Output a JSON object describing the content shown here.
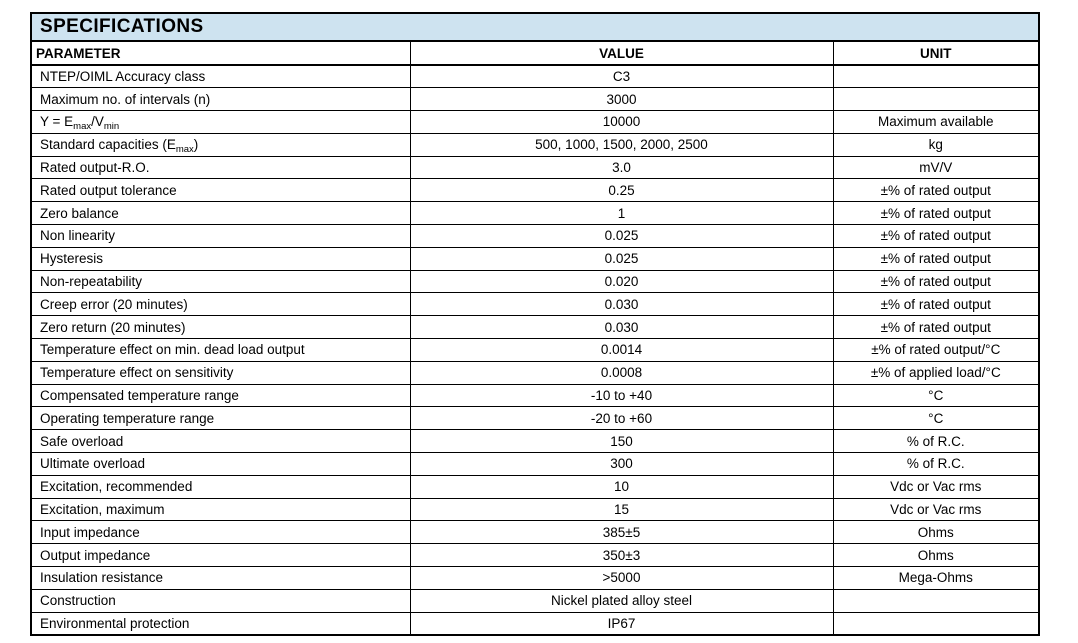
{
  "title": "SPECIFICATIONS",
  "colors": {
    "title_background": "#cee3f0",
    "border": "#000000",
    "text": "#000000",
    "page_background": "#ffffff"
  },
  "table": {
    "headers": {
      "parameter": "PARAMETER",
      "value": "VALUE",
      "unit": "UNIT"
    },
    "rows": [
      {
        "parameter": "NTEP/OIML Accuracy class",
        "value": "C3",
        "unit": ""
      },
      {
        "parameter": "Maximum no. of intervals (n)",
        "value": "3000",
        "unit": ""
      },
      {
        "parameter": "Y = E_{max}/V_{min}",
        "value": "10000",
        "unit": "Maximum available"
      },
      {
        "parameter": "Standard capacities (E_{max})",
        "value": "500, 1000, 1500, 2000, 2500",
        "unit": "kg"
      },
      {
        "parameter": "Rated output-R.O.",
        "value": "3.0",
        "unit": "mV/V"
      },
      {
        "parameter": "Rated output tolerance",
        "value": "0.25",
        "unit": "±% of rated output"
      },
      {
        "parameter": "Zero balance",
        "value": "1",
        "unit": "±% of rated output"
      },
      {
        "parameter": "Non linearity",
        "value": "0.025",
        "unit": "±% of rated output"
      },
      {
        "parameter": "Hysteresis",
        "value": "0.025",
        "unit": "±% of rated output"
      },
      {
        "parameter": "Non-repeatability",
        "value": "0.020",
        "unit": "±% of rated output"
      },
      {
        "parameter": "Creep error (20 minutes)",
        "value": "0.030",
        "unit": "±% of rated output"
      },
      {
        "parameter": "Zero return (20 minutes)",
        "value": "0.030",
        "unit": "±% of rated output"
      },
      {
        "parameter": "Temperature effect on min. dead load output",
        "value": "0.0014",
        "unit": "±% of rated output/°C"
      },
      {
        "parameter": "Temperature effect on sensitivity",
        "value": "0.0008",
        "unit": "±% of applied load/°C"
      },
      {
        "parameter": "Compensated temperature range",
        "value": "-10 to +40",
        "unit": "°C"
      },
      {
        "parameter": "Operating temperature range",
        "value": "-20 to +60",
        "unit": "°C"
      },
      {
        "parameter": "Safe overload",
        "value": "150",
        "unit": "% of R.C."
      },
      {
        "parameter": "Ultimate overload",
        "value": "300",
        "unit": "% of R.C."
      },
      {
        "parameter": "Excitation, recommended",
        "value": "10",
        "unit": "Vdc or Vac rms"
      },
      {
        "parameter": "Excitation, maximum",
        "value": "15",
        "unit": "Vdc or Vac rms"
      },
      {
        "parameter": "Input impedance",
        "value": "385±5",
        "unit": "Ohms"
      },
      {
        "parameter": "Output impedance",
        "value": "350±3",
        "unit": "Ohms"
      },
      {
        "parameter": "Insulation resistance",
        "value": ">5000",
        "unit": "Mega-Ohms"
      },
      {
        "parameter": "Construction",
        "value": "Nickel plated alloy steel",
        "unit": ""
      },
      {
        "parameter": "Environmental protection",
        "value": "IP67",
        "unit": ""
      }
    ]
  }
}
